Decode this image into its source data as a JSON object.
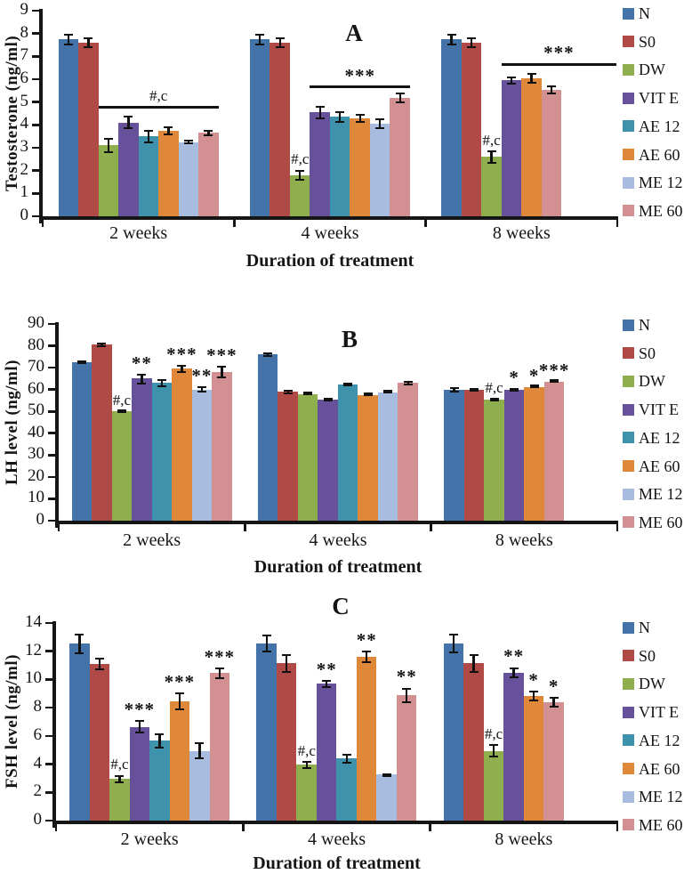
{
  "legend": {
    "position": "right",
    "items": [
      {
        "label": "N",
        "color": "#4473aa"
      },
      {
        "label": "S0",
        "color": "#b04a47"
      },
      {
        "label": "DW",
        "color": "#8fae4d"
      },
      {
        "label": "VIT E",
        "color": "#68519b"
      },
      {
        "label": "AE 12",
        "color": "#3e92ac"
      },
      {
        "label": "AE 60",
        "color": "#e0883a"
      },
      {
        "label": "ME 12",
        "color": "#a7bcde"
      },
      {
        "label": "ME 60",
        "color": "#d29092"
      }
    ]
  },
  "chart_data": [
    {
      "id": "A",
      "type": "bar",
      "title": "A",
      "ylabel": "Testosterone (ng/ml)",
      "xlabel": "Duration of treatment",
      "ylim": [
        0,
        9
      ],
      "yticks": [
        0,
        1,
        2,
        3,
        4,
        5,
        6,
        7,
        8,
        9
      ],
      "grid": false,
      "legend_position": "right",
      "categories": [
        "2 weeks",
        "4 weeks",
        "8 weeks"
      ],
      "series_order": [
        "N",
        "S0",
        "DW",
        "VIT E",
        "AE 12",
        "AE 60",
        "ME 12",
        "ME 60"
      ],
      "groups": [
        {
          "category": "2 weeks",
          "bars": [
            {
              "series": "N",
              "value": 7.75,
              "err": 0.25
            },
            {
              "series": "S0",
              "value": 7.6,
              "err": 0.25
            },
            {
              "series": "DW",
              "value": 3.1,
              "err": 0.35
            },
            {
              "series": "VIT E",
              "value": 4.1,
              "err": 0.3
            },
            {
              "series": "AE 12",
              "value": 3.5,
              "err": 0.3
            },
            {
              "series": "AE 60",
              "value": 3.75,
              "err": 0.2
            },
            {
              "series": "ME 12",
              "value": 3.25,
              "err": 0.1
            },
            {
              "series": "ME 60",
              "value": 3.65,
              "err": 0.15
            }
          ],
          "sig_line": {
            "from": "DW",
            "to": "ME 60",
            "y": 4.7,
            "label": "#,c",
            "to_plot_edge": false
          }
        },
        {
          "category": "4 weeks",
          "bars": [
            {
              "series": "N",
              "value": 7.75,
              "err": 0.25
            },
            {
              "series": "S0",
              "value": 7.6,
              "err": 0.25
            },
            {
              "series": "DW",
              "value": 1.8,
              "err": 0.25,
              "sig": "#,c"
            },
            {
              "series": "VIT E",
              "value": 4.55,
              "err": 0.3
            },
            {
              "series": "AE 12",
              "value": 4.35,
              "err": 0.25
            },
            {
              "series": "AE 60",
              "value": 4.3,
              "err": 0.2
            },
            {
              "series": "ME 12",
              "value": 4.05,
              "err": 0.25
            },
            {
              "series": "ME 60",
              "value": 5.2,
              "err": 0.25
            }
          ],
          "sig_line": {
            "from": "VIT E",
            "to": "ME 60",
            "y": 5.6,
            "label": "***",
            "to_plot_edge": false
          }
        },
        {
          "category": "8 weeks",
          "bars": [
            {
              "series": "N",
              "value": 7.75,
              "err": 0.25
            },
            {
              "series": "S0",
              "value": 7.6,
              "err": 0.25
            },
            {
              "series": "DW",
              "value": 2.6,
              "err": 0.3,
              "sig": "#,c"
            },
            {
              "series": "VIT E",
              "value": 5.95,
              "err": 0.2
            },
            {
              "series": "AE 60",
              "value": 6.05,
              "err": 0.25
            },
            {
              "series": "ME 60",
              "value": 5.55,
              "err": 0.2
            }
          ],
          "sig_line": {
            "from": "VIT E",
            "to": "ME 60",
            "y": 6.6,
            "label": "***",
            "to_plot_edge": true
          }
        }
      ]
    },
    {
      "id": "B",
      "type": "bar",
      "title": "B",
      "ylabel": "LH level (ng/ml)",
      "xlabel": "Duration of treatment",
      "ylim": [
        0,
        90
      ],
      "yticks": [
        0,
        10,
        20,
        30,
        40,
        50,
        60,
        70,
        80,
        90
      ],
      "grid": false,
      "legend_position": "right",
      "categories": [
        "2 weeks",
        "4 weeks",
        "8 weeks"
      ],
      "series_order": [
        "N",
        "S0",
        "DW",
        "VIT E",
        "AE 12",
        "AE 60",
        "ME 12",
        "ME 60"
      ],
      "groups": [
        {
          "category": "2 weeks",
          "bars": [
            {
              "series": "N",
              "value": 72.5,
              "err": 1
            },
            {
              "series": "S0",
              "value": 80.5,
              "err": 1
            },
            {
              "series": "DW",
              "value": 50,
              "err": 0.7,
              "sig": "#,c"
            },
            {
              "series": "VIT E",
              "value": 65,
              "err": 2.5,
              "sig": "**"
            },
            {
              "series": "AE 12",
              "value": 63,
              "err": 2
            },
            {
              "series": "AE 60",
              "value": 69.5,
              "err": 2,
              "sig": "***"
            },
            {
              "series": "ME 12",
              "value": 60,
              "err": 1.5,
              "sig": "**"
            },
            {
              "series": "ME 60",
              "value": 68,
              "err": 3,
              "sig": "***"
            }
          ]
        },
        {
          "category": "4 weeks",
          "bars": [
            {
              "series": "N",
              "value": 76,
              "err": 1
            },
            {
              "series": "S0",
              "value": 59,
              "err": 1.2
            },
            {
              "series": "DW",
              "value": 58,
              "err": 0.5
            },
            {
              "series": "VIT E",
              "value": 55.5,
              "err": 1
            },
            {
              "series": "AE 12",
              "value": 62.5,
              "err": 0.8
            },
            {
              "series": "AE 60",
              "value": 57.5,
              "err": 0.5
            },
            {
              "series": "ME 12",
              "value": 58.5,
              "err": 0.4
            },
            {
              "series": "ME 60",
              "value": 63,
              "err": 1
            }
          ]
        },
        {
          "category": "8 weeks",
          "bars": [
            {
              "series": "N",
              "value": 60,
              "err": 1.3
            },
            {
              "series": "S0",
              "value": 60,
              "err": 1
            },
            {
              "series": "DW",
              "value": 55.5,
              "err": 0.8,
              "sig": "#,c"
            },
            {
              "series": "VIT E",
              "value": 60,
              "err": 0.8,
              "sig": "*"
            },
            {
              "series": "AE 60",
              "value": 61,
              "err": 0.5,
              "sig": "*"
            },
            {
              "series": "ME 60",
              "value": 63.5,
              "err": 0.5,
              "sig": "***"
            }
          ]
        }
      ]
    },
    {
      "id": "C",
      "type": "bar",
      "title": "C",
      "ylabel": "FSH level (ng/ml)",
      "xlabel": "Duration of treatment",
      "ylim": [
        0,
        14
      ],
      "yticks": [
        0,
        2,
        4,
        6,
        8,
        10,
        12,
        14
      ],
      "grid": false,
      "legend_position": "right",
      "categories": [
        "2 weeks",
        "4 weeks",
        "8 weeks"
      ],
      "series_order": [
        "N",
        "S0",
        "DW",
        "VIT E",
        "AE 12",
        "AE 60",
        "ME 12",
        "ME 60"
      ],
      "groups": [
        {
          "category": "2 weeks",
          "bars": [
            {
              "series": "N",
              "value": 12.55,
              "err": 0.75
            },
            {
              "series": "S0",
              "value": 11.1,
              "err": 0.45
            },
            {
              "series": "DW",
              "value": 2.95,
              "err": 0.3,
              "sig": "#,c"
            },
            {
              "series": "VIT E",
              "value": 6.65,
              "err": 0.5,
              "sig": "***"
            },
            {
              "series": "AE 12",
              "value": 5.65,
              "err": 0.55
            },
            {
              "series": "AE 60",
              "value": 8.45,
              "err": 0.65,
              "sig": "***"
            },
            {
              "series": "ME 12",
              "value": 4.95,
              "err": 0.6
            },
            {
              "series": "ME 60",
              "value": 10.45,
              "err": 0.4,
              "sig": "***"
            }
          ]
        },
        {
          "category": "4 weeks",
          "bars": [
            {
              "series": "N",
              "value": 12.55,
              "err": 0.65
            },
            {
              "series": "S0",
              "value": 11.15,
              "err": 0.7
            },
            {
              "series": "DW",
              "value": 3.95,
              "err": 0.3,
              "sig": "#,c"
            },
            {
              "series": "VIT E",
              "value": 9.7,
              "err": 0.3,
              "sig": "**"
            },
            {
              "series": "AE 12",
              "value": 4.4,
              "err": 0.35
            },
            {
              "series": "AE 60",
              "value": 11.6,
              "err": 0.45,
              "sig": "**"
            },
            {
              "series": "ME 12",
              "value": 3.25,
              "err": 0.15
            },
            {
              "series": "ME 60",
              "value": 8.9,
              "err": 0.55,
              "sig": "**"
            }
          ]
        },
        {
          "category": "8 weeks",
          "bars": [
            {
              "series": "N",
              "value": 12.55,
              "err": 0.7
            },
            {
              "series": "S0",
              "value": 11.15,
              "err": 0.7
            },
            {
              "series": "DW",
              "value": 4.95,
              "err": 0.5,
              "sig": "#,c"
            },
            {
              "series": "VIT E",
              "value": 10.5,
              "err": 0.4,
              "sig": "**"
            },
            {
              "series": "AE 60",
              "value": 8.85,
              "err": 0.4,
              "sig": "*"
            },
            {
              "series": "ME 60",
              "value": 8.4,
              "err": 0.4,
              "sig": "*"
            }
          ]
        }
      ]
    }
  ]
}
